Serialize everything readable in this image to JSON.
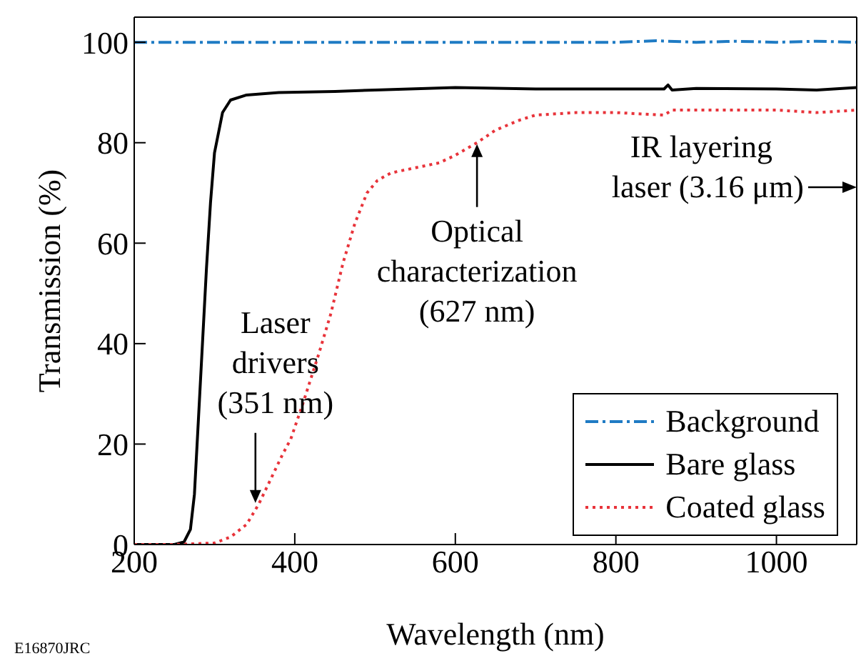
{
  "chart_data": {
    "type": "line",
    "xlabel": "Wavelength (nm)",
    "ylabel": "Transmission (%)",
    "xlim": [
      200,
      1100
    ],
    "ylim": [
      0,
      105
    ],
    "xticks": [
      200,
      400,
      600,
      800,
      1000
    ],
    "yticks": [
      0,
      20,
      40,
      60,
      80,
      100
    ],
    "legend": "bottom right",
    "marker": "none",
    "series": [
      {
        "name": "Background",
        "color": "#1f7bc4",
        "line_style": "dashed",
        "x": [
          200,
          300,
          400,
          500,
          600,
          700,
          800,
          850,
          900,
          950,
          1000,
          1050,
          1100
        ],
        "values": [
          100,
          100,
          100,
          100,
          100,
          100,
          100,
          100.3,
          100,
          100.2,
          100,
          100.2,
          100
        ]
      },
      {
        "name": "Bare glass",
        "color": "#000000",
        "line_style": "solid",
        "x": [
          200,
          250,
          262,
          270,
          275,
          280,
          285,
          290,
          295,
          300,
          310,
          320,
          340,
          380,
          450,
          500,
          600,
          700,
          800,
          860,
          865,
          870,
          900,
          1000,
          1050,
          1100
        ],
        "values": [
          0,
          0,
          0.5,
          3,
          10,
          25,
          40,
          55,
          68,
          78,
          86,
          88.5,
          89.5,
          90,
          90.2,
          90.5,
          91,
          90.7,
          90.7,
          90.7,
          91.5,
          90.5,
          90.8,
          90.7,
          90.5,
          91
        ]
      },
      {
        "name": "Coated glass",
        "color": "#e8333a",
        "line_style": "dotted",
        "x": [
          200,
          250,
          300,
          320,
          340,
          355,
          370,
          385,
          395,
          410,
          430,
          445,
          460,
          475,
          490,
          503,
          520,
          550,
          580,
          600,
          627,
          650,
          680,
          700,
          750,
          800,
          860,
          870,
          900,
          1000,
          1050,
          1100
        ],
        "values": [
          0,
          0,
          0.3,
          1.5,
          4,
          8,
          13,
          18,
          21,
          28,
          38,
          46,
          56,
          64,
          70,
          72.5,
          74,
          75,
          76,
          77.5,
          80,
          82.5,
          84.5,
          85.5,
          86,
          86,
          85.5,
          86.5,
          86.5,
          86.5,
          86,
          86.5
        ]
      }
    ],
    "annotations": [
      {
        "text": "Laser\ndrivers\n(351 nm)",
        "x": 351,
        "y": 8
      },
      {
        "text": "Optical\ncharacterization\n(627 nm)",
        "x": 627,
        "y": 80
      },
      "IR layering\nlaser (3.16 μm)",
      "E16870JRC"
    ]
  }
}
